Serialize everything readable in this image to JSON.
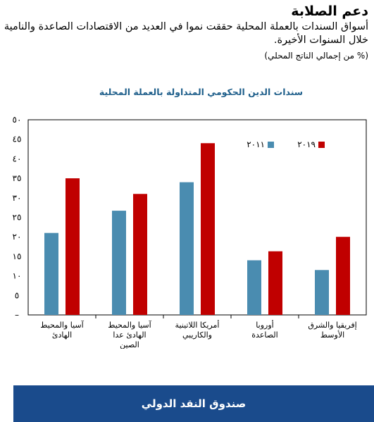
{
  "header": {
    "title": "دعم الصلابة",
    "subtitle": "أسواق السندات بالعملة المحلية حققت نموا في العديد من الاقتصادات الصاعدة والنامية خلال السنوات الأخيرة.",
    "unit": "(% من إجمالي الناتج المحلي)"
  },
  "footer": {
    "label": "صندوق النقد الدولي"
  },
  "colors": {
    "series_2011": "#4a8cb0",
    "series_2019": "#c00000",
    "title": "#1f5f8b",
    "footer": "#1a4b8c"
  },
  "chart_data": {
    "type": "bar",
    "title": "سندات الدين الحكومي المتداولة بالعملة المحلية",
    "categories": [
      [
        "آسيا والمحيط",
        "الهادئ"
      ],
      [
        "آسيا والمحيط",
        "الهادئ عدا",
        "الصين"
      ],
      [
        "أمريكا اللاتينية",
        "والكاريبي"
      ],
      [
        "أوروبا",
        "الصاعدة"
      ],
      [
        "إفريقيا والشرق",
        "الأوسط"
      ]
    ],
    "series": [
      {
        "name": "٢٠١١",
        "values": [
          21,
          26.7,
          34,
          14,
          11.5
        ]
      },
      {
        "name": "٢٠١٩",
        "values": [
          35,
          31,
          44,
          16.3,
          20
        ]
      }
    ],
    "ylim": [
      0,
      50
    ],
    "yticks": [
      "–",
      "٥",
      "١٠",
      "١٥",
      "٢٠",
      "٢٥",
      "٣٠",
      "٣٥",
      "٤٠",
      "٤٥",
      "٥٠"
    ],
    "xlabel": "",
    "ylabel": "",
    "legend_position": "top-right"
  }
}
